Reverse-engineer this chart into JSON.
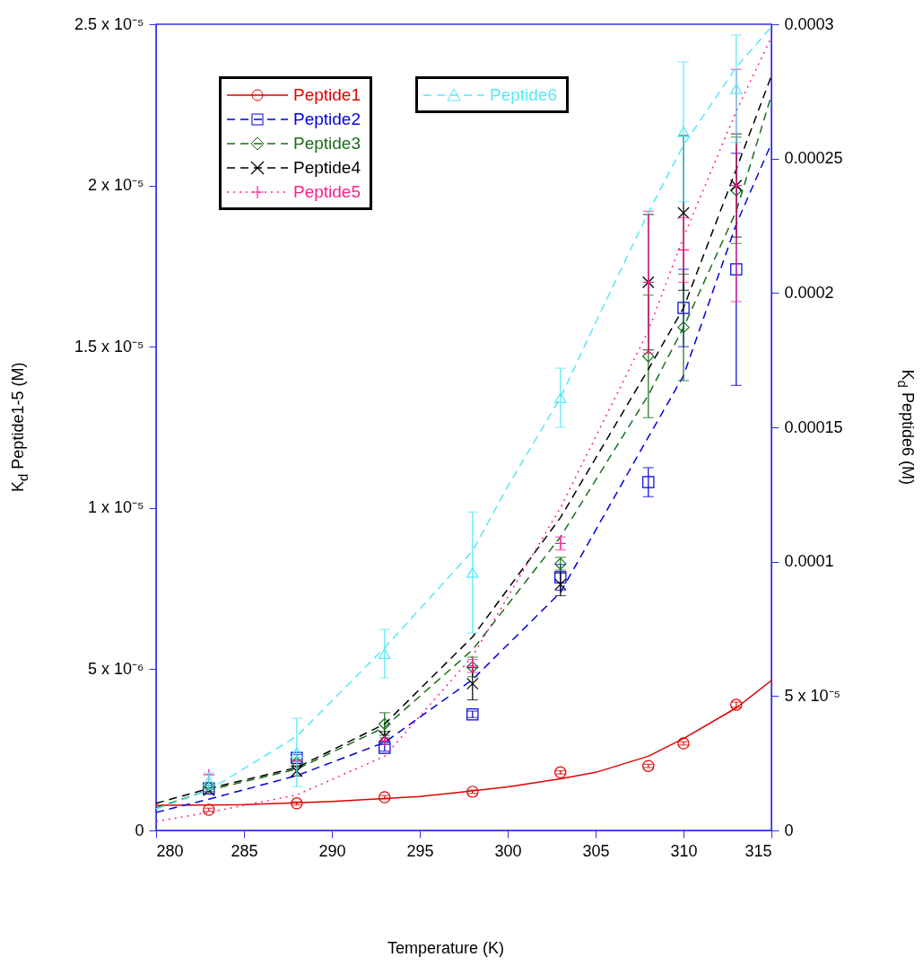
{
  "chart_data": {
    "type": "scatter",
    "xlabel": "Temperature (K)",
    "ylabel": "K$_{d}$ Peptide1-5 (M)",
    "y2label": "K$_{d}$ Peptide6 (M)",
    "xlim": [
      280,
      315
    ],
    "xticks": [
      280,
      285,
      290,
      295,
      300,
      305,
      310,
      315
    ],
    "ylim": [
      0,
      2.5e-05
    ],
    "yticks": [
      0,
      {
        "value": 5e-06,
        "label": "5 x 10⁻⁶"
      },
      {
        "value": 1e-05,
        "label": "1 x 10⁻⁵"
      },
      {
        "value": 1.5e-05,
        "label": "1.5 x 10⁻⁵"
      },
      {
        "value": 2e-05,
        "label": "2 x 10⁻⁵"
      },
      {
        "value": 2.5e-05,
        "label": "2.5 x 10⁻⁵"
      }
    ],
    "y2lim": [
      0,
      0.0003
    ],
    "y2ticks": [
      0,
      {
        "value": 5e-05,
        "label": "5 x 10⁻⁵"
      },
      0.0001,
      0.00015,
      0.0002,
      0.00025,
      0.0003
    ],
    "legend": "top left",
    "grid": false,
    "x": [
      283,
      288,
      293,
      298,
      303,
      308,
      310,
      313
    ],
    "series": [
      {
        "name": "Peptide1",
        "color": "#e00000",
        "marker": "circle",
        "values": [
          6.4e-07,
          8.4e-07,
          1.03e-06,
          1.2e-06,
          1.8e-06,
          2e-06,
          2.7e-06,
          3.9e-06
        ],
        "errors": [
          5e-08,
          5e-08,
          5e-08,
          5e-08,
          5e-08,
          5e-08,
          5e-08,
          8e-08
        ]
      },
      {
        "type": "line",
        "color": "#e00000",
        "line_style": "solid",
        "x": [
          280,
          285,
          290,
          295,
          300,
          303,
          305,
          308,
          310,
          313,
          315
        ],
        "values": [
          7.8e-07,
          8e-07,
          9e-07,
          1.05e-06,
          1.35e-06,
          1.6e-06,
          1.8e-06,
          2.3e-06,
          2.85e-06,
          3.8e-06,
          4.65e-06
        ]
      },
      {
        "name": "Peptide2",
        "color": "#0000e0",
        "marker": "square",
        "values": [
          1.3e-06,
          2.25e-06,
          2.56e-06,
          3.6e-06,
          7.85e-06,
          1.08e-05,
          1.62e-05,
          1.74e-05
        ],
        "errors": [
          1e-07,
          1e-07,
          1e-07,
          1e-07,
          4e-07,
          4.5e-07,
          1.2e-06,
          3.6e-06
        ]
      },
      {
        "type": "line",
        "color": "#0000e0",
        "line_style": "dashed",
        "x": [
          280,
          283,
          288,
          293,
          298,
          303,
          308,
          310,
          313,
          315
        ],
        "values": [
          5.6e-07,
          9.7e-07,
          1.7e-06,
          2.73e-06,
          4.68e-06,
          7.38e-06,
          1.22e-05,
          1.41e-05,
          1.88e-05,
          2.13e-05
        ]
      },
      {
        "name": "Peptide3",
        "color": "#1a6e1a",
        "marker": "diamond",
        "values": [
          1.35e-06,
          2.1e-06,
          3.3e-06,
          5.07e-06,
          8.27e-06,
          1.47e-05,
          1.56e-05,
          1.985e-05
        ],
        "errors": [
          null,
          1e-07,
          3.5e-07,
          3e-07,
          2e-07,
          1.9e-06,
          1.65e-06,
          1.65e-06
        ]
      },
      {
        "type": "line",
        "color": "#1a6e1a",
        "line_style": "dashed",
        "x": [
          280,
          283,
          288,
          293,
          298,
          303,
          308,
          310,
          313,
          315
        ],
        "values": [
          7e-07,
          1.25e-06,
          1.9e-06,
          3.2e-06,
          5.6e-06,
          9.1e-06,
          1.35e-05,
          1.56e-05,
          1.92e-05,
          2.28e-05
        ]
      },
      {
        "name": "Peptide4",
        "color": "#000000",
        "marker": "x",
        "values": [
          1.25e-06,
          1.84e-06,
          2.92e-06,
          4.55e-06,
          7.63e-06,
          1.7e-05,
          1.915e-05,
          2e-05
        ],
        "errors": [
          null,
          1.5e-07,
          1.5e-07,
          5e-07,
          3.5e-07,
          2.1e-06,
          2.4e-06,
          1.6e-06
        ]
      },
      {
        "type": "line",
        "color": "#000000",
        "line_style": "dashed",
        "x": [
          280,
          283,
          288,
          293,
          298,
          303,
          308,
          310,
          313,
          315
        ],
        "values": [
          8.4e-07,
          1.3e-06,
          1.95e-06,
          3.3e-06,
          6e-06,
          9.7e-06,
          1.43e-05,
          1.62e-05,
          2.05e-05,
          2.34e-05
        ]
      },
      {
        "name": "Peptide5",
        "color": "#ff1f8f",
        "marker": "cross",
        "values": [
          1.73e-06,
          2.15e-06,
          2.78e-06,
          5.1e-06,
          8.9e-06,
          1.7e-05,
          1.8e-05,
          2e-05
        ],
        "errors": [
          null,
          null,
          1e-07,
          2e-07,
          2e-07,
          2.2e-06,
          1e-06,
          3.6e-06
        ]
      },
      {
        "type": "line",
        "color": "#ff1f8f",
        "line_style": "dotted",
        "x": [
          280,
          283,
          288,
          293,
          298,
          303,
          308,
          310,
          313,
          315
        ],
        "values": [
          2.8e-07,
          5.6e-07,
          1.1e-06,
          2.3e-06,
          5.4e-06,
          1e-05,
          1.55e-05,
          1.84e-05,
          2.23e-05,
          2.46e-05
        ]
      },
      {
        "name": "Peptide6",
        "axis": "y2",
        "color": "#55e8f8",
        "marker": "triangle",
        "values": [
          1.84e-05,
          2.9e-05,
          6.58e-05,
          9.6e-05,
          0.000161,
          null,
          0.00026,
          0.000276
        ],
        "errors": [
          3e-06,
          1.27e-05,
          9e-06,
          2.25e-05,
          1.1e-05,
          null,
          2.6e-05,
          2e-05
        ]
      },
      {
        "type": "line",
        "axis": "y2",
        "color": "#55e8f8",
        "line_style": "dashed",
        "x": [
          280,
          283,
          288,
          293,
          298,
          300,
          303,
          305,
          308,
          310,
          313,
          315
        ],
        "values": [
          8e-06,
          1.5e-05,
          3.5e-05,
          6.8e-05,
          0.000104,
          0.000128,
          0.000161,
          0.000189,
          0.00023,
          0.000255,
          0.000284,
          0.000299
        ]
      }
    ]
  }
}
